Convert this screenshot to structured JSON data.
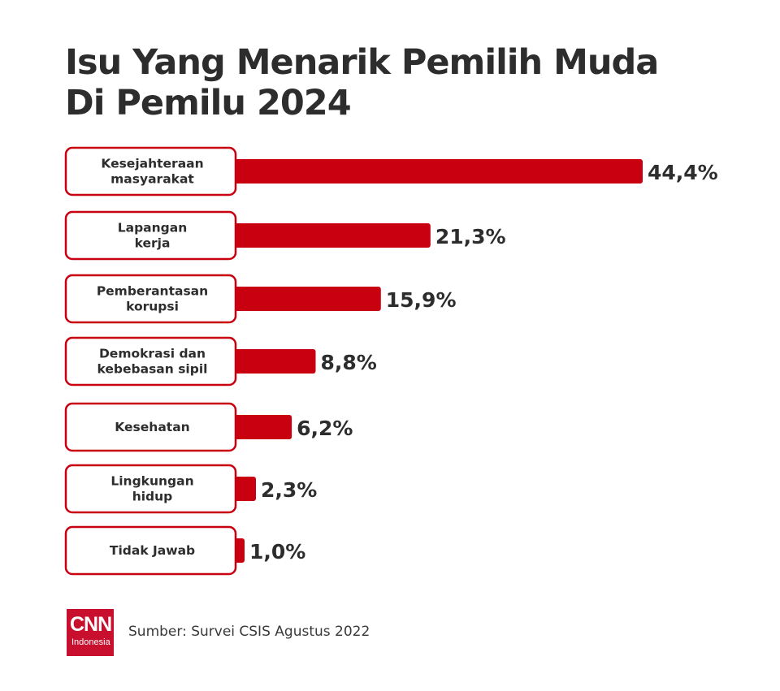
{
  "title": {
    "line1": "Isu Yang Menarik Pemilih Muda",
    "line2": "Di Pemilu 2024"
  },
  "colors": {
    "bar": "#c8000f",
    "border": "#c8000f",
    "text": "#2d2d2d"
  },
  "chart_data": {
    "type": "bar",
    "orientation": "horizontal",
    "title": "Isu Yang Menarik Pemilih Muda Di Pemilu 2024",
    "categories": [
      [
        "Kesejahteraan",
        "masyarakat"
      ],
      [
        "Lapangan",
        "kerja"
      ],
      [
        "Pemberantasan",
        "korupsi"
      ],
      [
        "Demokrasi dan",
        "kebebasan sipil"
      ],
      [
        "Kesehatan"
      ],
      [
        "Lingkungan",
        "hidup"
      ],
      [
        "Tidak Jawab"
      ]
    ],
    "values": [
      44.4,
      21.3,
      15.9,
      8.8,
      6.2,
      2.3,
      1.0
    ],
    "value_labels": [
      "44,4%",
      "21,3%",
      "15,9%",
      "8,8%",
      "6,2%",
      "2,3%",
      "1,0%"
    ],
    "unit": "%",
    "xlim": [
      0,
      44.4
    ]
  },
  "footer": {
    "logo_main": "CNN",
    "logo_sub": "Indonesia",
    "source": "Sumber: Survei CSIS Agustus 2022"
  }
}
